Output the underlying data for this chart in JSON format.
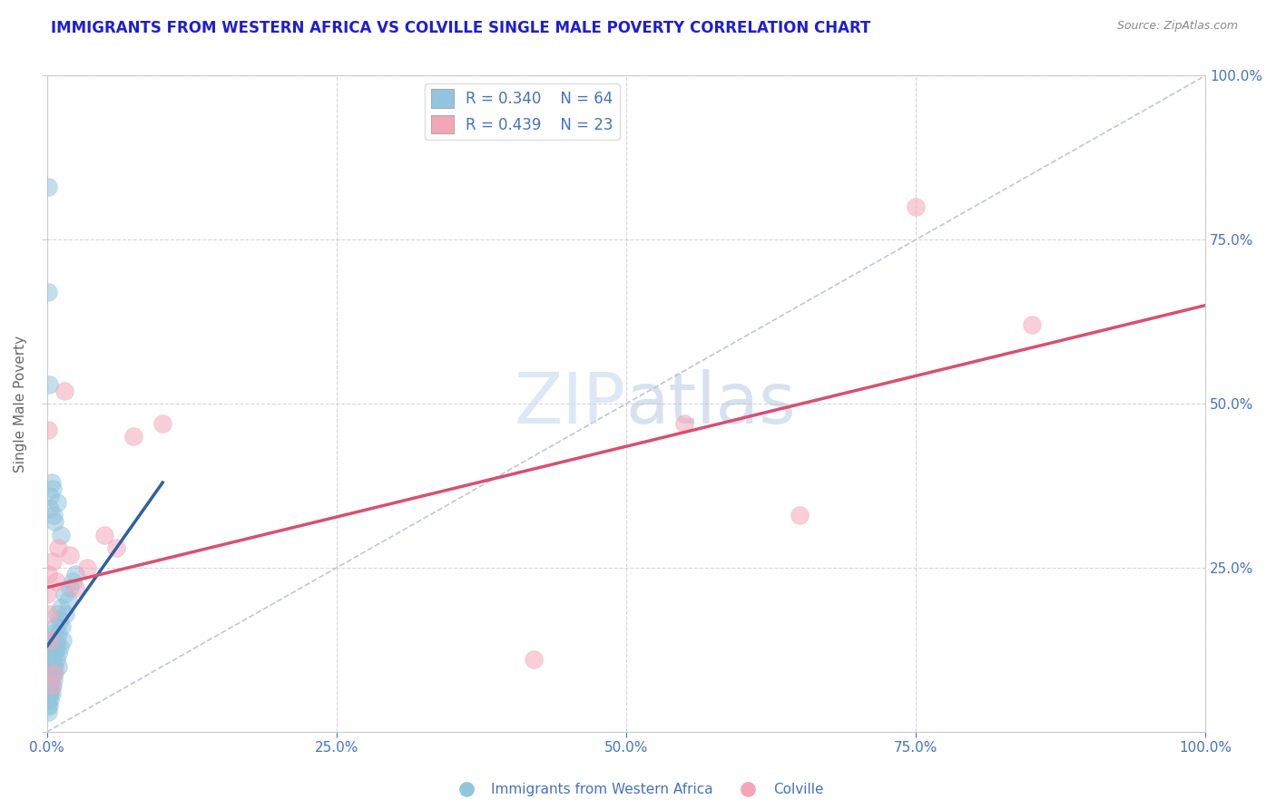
{
  "title": "IMMIGRANTS FROM WESTERN AFRICA VS COLVILLE SINGLE MALE POVERTY CORRELATION CHART",
  "source": "Source: ZipAtlas.com",
  "ylabel": "Single Male Poverty",
  "legend_label_blue": "Immigrants from Western Africa",
  "legend_label_pink": "Colville",
  "R_blue": 0.34,
  "N_blue": 64,
  "R_pink": 0.439,
  "N_pink": 23,
  "blue_color": "#92c5de",
  "pink_color": "#f4a6b8",
  "blue_line_color": "#3060a0",
  "pink_line_color": "#d94f70",
  "ref_line_color": "#b0b8d0",
  "watermark_color": "#c8d8f0",
  "title_color": "#1f1fd0",
  "source_color": "#888888",
  "axis_label_color": "#4472c4",
  "tick_label_color": "#4472c4",
  "ylabel_color": "#666666",
  "blue_scatter_x": [
    0.05,
    0.08,
    0.1,
    0.1,
    0.1,
    0.12,
    0.12,
    0.15,
    0.15,
    0.18,
    0.2,
    0.2,
    0.2,
    0.22,
    0.25,
    0.25,
    0.28,
    0.3,
    0.3,
    0.3,
    0.32,
    0.35,
    0.35,
    0.4,
    0.4,
    0.45,
    0.5,
    0.5,
    0.55,
    0.6,
    0.6,
    0.65,
    0.7,
    0.7,
    0.75,
    0.8,
    0.8,
    0.85,
    0.9,
    0.95,
    1.0,
    1.0,
    1.1,
    1.1,
    1.2,
    1.3,
    1.4,
    1.5,
    1.6,
    1.8,
    2.0,
    2.2,
    2.5,
    0.1,
    0.15,
    0.2,
    0.25,
    0.3,
    0.4,
    0.5,
    0.6,
    0.7,
    0.9,
    1.2
  ],
  "blue_scatter_y": [
    5.0,
    4.0,
    6.0,
    8.0,
    3.0,
    7.0,
    10.0,
    5.0,
    9.0,
    6.0,
    7.0,
    12.0,
    4.0,
    8.0,
    6.0,
    11.0,
    9.0,
    7.0,
    13.0,
    5.0,
    10.0,
    8.0,
    14.0,
    9.0,
    6.0,
    11.0,
    10.0,
    7.0,
    13.0,
    8.0,
    15.0,
    10.0,
    12.0,
    9.0,
    16.0,
    11.0,
    14.0,
    13.0,
    18.0,
    12.0,
    15.0,
    10.0,
    17.0,
    13.0,
    19.0,
    16.0,
    14.0,
    21.0,
    18.0,
    20.0,
    22.0,
    23.0,
    24.0,
    83.0,
    67.0,
    53.0,
    36.0,
    34.0,
    38.0,
    37.0,
    33.0,
    32.0,
    35.0,
    30.0
  ],
  "pink_scatter_x": [
    0.05,
    0.08,
    0.15,
    0.2,
    0.3,
    0.5,
    0.8,
    1.0,
    1.5,
    2.0,
    2.5,
    3.5,
    5.0,
    6.0,
    7.5,
    10.0,
    42.0,
    55.0,
    65.0,
    75.0,
    85.0,
    0.4,
    0.6
  ],
  "pink_scatter_y": [
    21.0,
    24.0,
    46.0,
    18.0,
    14.0,
    26.0,
    23.0,
    28.0,
    52.0,
    27.0,
    22.0,
    25.0,
    30.0,
    28.0,
    45.0,
    47.0,
    11.0,
    47.0,
    33.0,
    80.0,
    62.0,
    7.0,
    9.0
  ],
  "blue_line_x0": 0.0,
  "blue_line_x1": 10.0,
  "blue_line_y0": 13.0,
  "blue_line_y1": 38.0,
  "pink_line_x0": 0.0,
  "pink_line_x1": 100.0,
  "pink_line_y0": 22.0,
  "pink_line_y1": 65.0,
  "ref_line_x0": 0.0,
  "ref_line_x1": 100.0,
  "ref_line_y0": 0.0,
  "ref_line_y1": 100.0,
  "xlim": [
    0,
    100
  ],
  "ylim": [
    0,
    100
  ],
  "xticks": [
    0,
    25,
    50,
    75,
    100
  ],
  "yticks_right": [
    25,
    50,
    75,
    100
  ],
  "xticklabels": [
    "0.0%",
    "25.0%",
    "50.0%",
    "75.0%",
    "100.0%"
  ],
  "yticklabels_right": [
    "25.0%",
    "50.0%",
    "75.0%",
    "100.0%"
  ],
  "grid_color": "#cccccc",
  "spine_color": "#cccccc"
}
